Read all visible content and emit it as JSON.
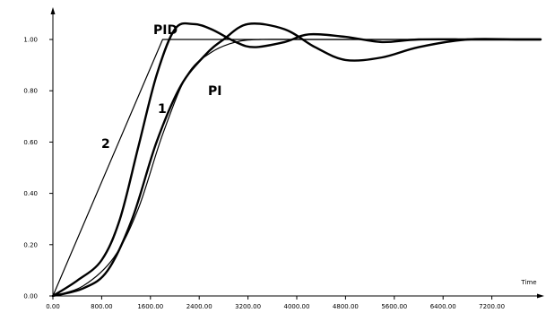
{
  "chart_data": {
    "type": "line",
    "title": "",
    "xlabel": "Time",
    "ylabel": "",
    "xlim": [
      0,
      8000
    ],
    "ylim": [
      0,
      1.1
    ],
    "grid": false,
    "x_ticks": [
      0,
      800,
      1600,
      2400,
      3200,
      4000,
      4800,
      5600,
      6400,
      7200
    ],
    "x_tick_labels": [
      "0.00",
      "800.00",
      "1600.00",
      "2400.00",
      "3200.00",
      "4000.00",
      "4800.00",
      "5600.00",
      "6400.00",
      "7200.00"
    ],
    "y_ticks": [
      0,
      0.2,
      0.4,
      0.6,
      0.8,
      1.0
    ],
    "y_tick_labels": [
      "0.00",
      "0.20",
      "0.40",
      "0.60",
      "0.80",
      "1.00"
    ],
    "series": [
      {
        "name": "2",
        "width": 1.2,
        "x": [
          0,
          1800,
          8000
        ],
        "y": [
          0,
          1.0,
          1.0
        ]
      },
      {
        "name": "1",
        "width": 1.2,
        "x": [
          0,
          500,
          1000,
          1400,
          1800,
          2200,
          2600,
          3000,
          3400,
          4000,
          5000,
          6000,
          7000,
          8000
        ],
        "y": [
          0,
          0.04,
          0.15,
          0.34,
          0.63,
          0.86,
          0.95,
          0.99,
          1.0,
          1.0,
          1.0,
          1.0,
          1.0,
          1.0
        ]
      },
      {
        "name": "PID",
        "width": 2.4,
        "x": [
          0,
          400,
          800,
          1100,
          1400,
          1700,
          2000,
          2300,
          2600,
          3000,
          3300,
          3800,
          4200,
          4800,
          5400,
          6000,
          7000,
          8000
        ],
        "y": [
          0,
          0.06,
          0.14,
          0.3,
          0.58,
          0.86,
          1.04,
          1.06,
          1.04,
          0.99,
          0.97,
          0.99,
          1.02,
          1.01,
          0.99,
          1.0,
          1.0,
          1.0
        ]
      },
      {
        "name": "PI",
        "width": 2.4,
        "x": [
          0,
          500,
          900,
          1300,
          1700,
          2100,
          2500,
          2800,
          3200,
          3800,
          4300,
          4800,
          5400,
          6000,
          6800,
          7600,
          8000
        ],
        "y": [
          0,
          0.03,
          0.1,
          0.3,
          0.6,
          0.82,
          0.94,
          1.0,
          1.06,
          1.04,
          0.97,
          0.92,
          0.93,
          0.97,
          1.0,
          1.0,
          1.0
        ]
      }
    ],
    "annotations": [
      "PID",
      "PI",
      "1",
      "2"
    ]
  }
}
